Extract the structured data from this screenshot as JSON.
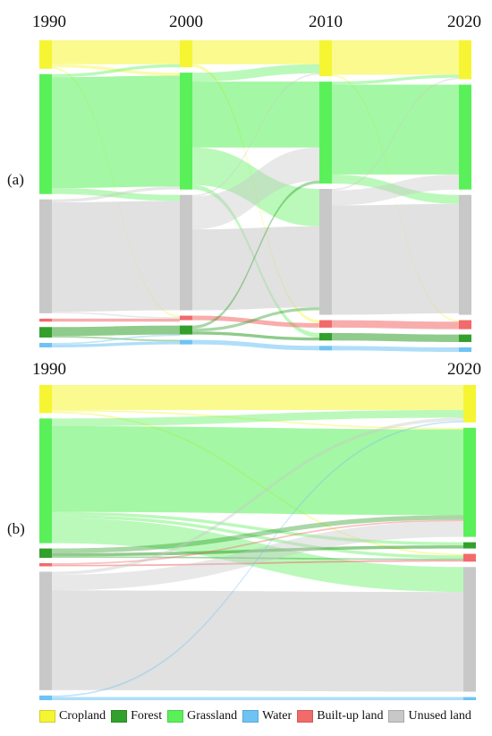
{
  "chart_data": [
    {
      "type": "sankey",
      "panel_label": "(a)",
      "periods": [
        "1990",
        "2000",
        "2010",
        "2020"
      ],
      "categories": [
        "Cropland",
        "Forest",
        "Grassland",
        "Water",
        "Built-up land",
        "Unused land"
      ],
      "node_order": [
        "Cropland",
        "Grassland",
        "Unused land",
        "Built-up land",
        "Forest",
        "Water"
      ],
      "nodes": {
        "1990": {
          "Cropland": 9.5,
          "Grassland": 40.0,
          "Unused land": 38.0,
          "Built-up land": 1.0,
          "Forest": 3.5,
          "Water": 1.5
        },
        "2000": {
          "Cropland": 9.0,
          "Grassland": 39.0,
          "Unused land": 38.5,
          "Built-up land": 1.5,
          "Forest": 3.0,
          "Water": 1.5
        },
        "2010": {
          "Cropland": 12.0,
          "Grassland": 34.0,
          "Unused land": 42.0,
          "Built-up land": 2.5,
          "Forest": 2.5,
          "Water": 1.5
        },
        "2020": {
          "Cropland": 13.0,
          "Grassland": 35.0,
          "Unused land": 40.0,
          "Built-up land": 3.0,
          "Forest": 2.5,
          "Water": 1.5
        }
      },
      "flows": [
        [
          {
            "from": "Cropland",
            "to": "Cropland",
            "value": 8.0
          },
          {
            "from": "Cropland",
            "to": "Grassland",
            "value": 1.0
          },
          {
            "from": "Cropland",
            "to": "Built-up land",
            "value": 0.5
          },
          {
            "from": "Grassland",
            "to": "Cropland",
            "value": 1.0
          },
          {
            "from": "Grassland",
            "to": "Grassland",
            "value": 37.0
          },
          {
            "from": "Grassland",
            "to": "Unused land",
            "value": 2.0
          },
          {
            "from": "Unused land",
            "to": "Grassland",
            "value": 1.0
          },
          {
            "from": "Unused land",
            "to": "Unused land",
            "value": 36.5
          },
          {
            "from": "Unused land",
            "to": "Built-up land",
            "value": 0.5
          },
          {
            "from": "Built-up land",
            "to": "Built-up land",
            "value": 1.0
          },
          {
            "from": "Forest",
            "to": "Forest",
            "value": 3.0
          },
          {
            "from": "Forest",
            "to": "Water",
            "value": 0.5
          },
          {
            "from": "Water",
            "to": "Water",
            "value": 1.0
          },
          {
            "from": "Water",
            "to": "Forest",
            "value": 0.5
          }
        ],
        [
          {
            "from": "Cropland",
            "to": "Cropland",
            "value": 8.0
          },
          {
            "from": "Cropland",
            "to": "Built-up land",
            "value": 1.0
          },
          {
            "from": "Grassland",
            "to": "Cropland",
            "value": 3.0
          },
          {
            "from": "Grassland",
            "to": "Grassland",
            "value": 22.0
          },
          {
            "from": "Grassland",
            "to": "Unused land",
            "value": 12.5
          },
          {
            "from": "Grassland",
            "to": "Forest",
            "value": 1.5
          },
          {
            "from": "Unused land",
            "to": "Grassland",
            "value": 11.0
          },
          {
            "from": "Unused land",
            "to": "Unused land",
            "value": 27.0
          },
          {
            "from": "Unused land",
            "to": "Cropland",
            "value": 0.5
          },
          {
            "from": "Built-up land",
            "to": "Built-up land",
            "value": 1.5
          },
          {
            "from": "Forest",
            "to": "Grassland",
            "value": 1.0
          },
          {
            "from": "Forest",
            "to": "Forest",
            "value": 1.0
          },
          {
            "from": "Forest",
            "to": "Unused land",
            "value": 1.0
          },
          {
            "from": "Water",
            "to": "Water",
            "value": 1.5
          }
        ],
        [
          {
            "from": "Cropland",
            "to": "Cropland",
            "value": 11.5
          },
          {
            "from": "Cropland",
            "to": "Built-up land",
            "value": 0.5
          },
          {
            "from": "Grassland",
            "to": "Cropland",
            "value": 1.0
          },
          {
            "from": "Grassland",
            "to": "Grassland",
            "value": 30.0
          },
          {
            "from": "Grassland",
            "to": "Unused land",
            "value": 3.0
          },
          {
            "from": "Unused land",
            "to": "Grassland",
            "value": 5.0
          },
          {
            "from": "Unused land",
            "to": "Unused land",
            "value": 36.5
          },
          {
            "from": "Unused land",
            "to": "Cropland",
            "value": 0.5
          },
          {
            "from": "Built-up land",
            "to": "Built-up land",
            "value": 2.5
          },
          {
            "from": "Forest",
            "to": "Forest",
            "value": 2.5
          },
          {
            "from": "Water",
            "to": "Water",
            "value": 1.5
          }
        ]
      ]
    },
    {
      "type": "sankey",
      "panel_label": "(b)",
      "periods": [
        "1990",
        "2020"
      ],
      "categories": [
        "Cropland",
        "Forest",
        "Grassland",
        "Water",
        "Built-up land",
        "Unused land"
      ],
      "node_order": [
        "Cropland",
        "Grassland",
        "Forest",
        "Built-up land",
        "Unused land",
        "Water"
      ],
      "nodes": {
        "1990": {
          "Cropland": 9.0,
          "Grassland": 40.0,
          "Forest": 3.0,
          "Built-up land": 1.0,
          "Unused land": 38.0,
          "Water": 1.5
        },
        "2020": {
          "Cropland": 12.0,
          "Grassland": 35.0,
          "Forest": 2.0,
          "Built-up land": 2.5,
          "Unused land": 40.0,
          "Water": 1.0
        }
      },
      "flows": [
        [
          {
            "from": "Cropland",
            "to": "Cropland",
            "value": 8.0
          },
          {
            "from": "Cropland",
            "to": "Built-up land",
            "value": 0.5
          },
          {
            "from": "Cropland",
            "to": "Grassland",
            "value": 0.5
          },
          {
            "from": "Grassland",
            "to": "Cropland",
            "value": 2.5
          },
          {
            "from": "Grassland",
            "to": "Grassland",
            "value": 27.5
          },
          {
            "from": "Grassland",
            "to": "Built-up land",
            "value": 1.0
          },
          {
            "from": "Grassland",
            "to": "Forest",
            "value": 1.0
          },
          {
            "from": "Grassland",
            "to": "Unused land",
            "value": 8.0
          },
          {
            "from": "Forest",
            "to": "Grassland",
            "value": 1.5
          },
          {
            "from": "Forest",
            "to": "Forest",
            "value": 1.0
          },
          {
            "from": "Forest",
            "to": "Built-up land",
            "value": 0.5
          },
          {
            "from": "Built-up land",
            "to": "Built-up land",
            "value": 0.5
          },
          {
            "from": "Built-up land",
            "to": "Grassland",
            "value": 0.5
          },
          {
            "from": "Unused land",
            "to": "Cropland",
            "value": 1.0
          },
          {
            "from": "Unused land",
            "to": "Grassland",
            "value": 5.0
          },
          {
            "from": "Unused land",
            "to": "Unused land",
            "value": 32.0
          },
          {
            "from": "Water",
            "to": "Water",
            "value": 1.0
          },
          {
            "from": "Water",
            "to": "Cropland",
            "value": 0.5
          }
        ]
      ]
    }
  ],
  "legend": [
    {
      "label": "Cropland",
      "color": "#f5f533"
    },
    {
      "label": "Forest",
      "color": "#33a02c"
    },
    {
      "label": "Grassland",
      "color": "#5af05a"
    },
    {
      "label": "Water",
      "color": "#6ec3f4"
    },
    {
      "label": "Built-up land",
      "color": "#f26a6a"
    },
    {
      "label": "Unused land",
      "color": "#c8c8c8"
    }
  ],
  "colors": {
    "Cropland": "#f5f533",
    "Forest": "#33a02c",
    "Grassland": "#5af05a",
    "Water": "#6ec3f4",
    "Built-up land": "#f26a6a",
    "Unused land": "#c8c8c8"
  }
}
